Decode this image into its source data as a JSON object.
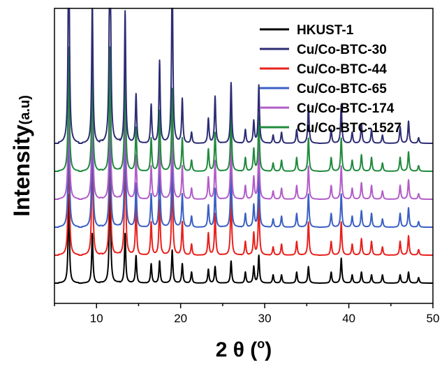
{
  "chart_data": {
    "type": "line",
    "title": "",
    "xlabel": "2 θ (°)",
    "xlabel_parts": {
      "main": "2 θ (",
      "degree": "o",
      "close": ")"
    },
    "ylabel": "Intensity(a.u)",
    "ylabel_parts": {
      "main": "Intensity",
      "unit": "(a.u)"
    },
    "xlim": [
      5,
      50
    ],
    "x_ticks": [
      10,
      20,
      30,
      40,
      50
    ],
    "x_tick_labels": [
      "10",
      "20",
      "30",
      "40",
      "50"
    ],
    "y_ticks_shown": false,
    "grid": false,
    "legend_position": "top-right",
    "stacked_offset": true,
    "peak_positions": [
      6.7,
      9.5,
      11.6,
      13.4,
      14.7,
      16.5,
      17.5,
      19.0,
      20.2,
      21.3,
      23.3,
      24.1,
      26.0,
      27.7,
      28.7,
      29.3,
      31.0,
      32.0,
      33.8,
      35.2,
      37.9,
      39.1,
      40.4,
      41.5,
      42.7,
      44.0,
      46.1,
      47.1,
      48.3
    ],
    "series": [
      {
        "name": "HKUST-1",
        "color": "#000000",
        "offset": 0,
        "scale": 1.0,
        "peaks": [
          0.32,
          0.18,
          0.42,
          0.18,
          0.1,
          0.07,
          0.08,
          0.12,
          0.07,
          0.04,
          0.05,
          0.06,
          0.08,
          0.04,
          0.06,
          0.1,
          0.03,
          0.03,
          0.04,
          0.06,
          0.04,
          0.09,
          0.03,
          0.04,
          0.03,
          0.03,
          0.03,
          0.04,
          0.02
        ]
      },
      {
        "name": "Cu/Co-BTC-44",
        "color": "#e8201c",
        "offset": 1,
        "scale": 1.0,
        "peaks": [
          0.45,
          0.42,
          0.45,
          0.42,
          0.18,
          0.12,
          0.2,
          0.3,
          0.12,
          0.04,
          0.08,
          0.15,
          0.22,
          0.05,
          0.08,
          0.2,
          0.03,
          0.04,
          0.05,
          0.12,
          0.05,
          0.12,
          0.04,
          0.06,
          0.05,
          0.03,
          0.05,
          0.07,
          0.02
        ]
      },
      {
        "name": "Cu/Co-BTC-65",
        "color": "#3a5fc4",
        "offset": 2,
        "scale": 1.0,
        "peaks": [
          0.45,
          0.42,
          0.45,
          0.42,
          0.16,
          0.12,
          0.22,
          0.3,
          0.12,
          0.04,
          0.08,
          0.14,
          0.22,
          0.05,
          0.08,
          0.2,
          0.03,
          0.04,
          0.05,
          0.12,
          0.05,
          0.12,
          0.04,
          0.06,
          0.05,
          0.03,
          0.05,
          0.07,
          0.02
        ]
      },
      {
        "name": "Cu/Co-BTC-174",
        "color": "#b25cc8",
        "offset": 3,
        "scale": 1.0,
        "peaks": [
          0.45,
          0.42,
          0.45,
          0.42,
          0.16,
          0.12,
          0.22,
          0.3,
          0.12,
          0.04,
          0.08,
          0.14,
          0.22,
          0.05,
          0.08,
          0.2,
          0.03,
          0.04,
          0.05,
          0.12,
          0.05,
          0.12,
          0.04,
          0.06,
          0.05,
          0.03,
          0.05,
          0.07,
          0.02
        ]
      },
      {
        "name": "Cu/Co-BTC-1527",
        "color": "#1f8a3c",
        "offset": 4,
        "scale": 1.0,
        "peaks": [
          0.45,
          0.42,
          0.45,
          0.42,
          0.16,
          0.12,
          0.22,
          0.3,
          0.12,
          0.04,
          0.08,
          0.14,
          0.22,
          0.05,
          0.08,
          0.2,
          0.03,
          0.04,
          0.05,
          0.12,
          0.05,
          0.12,
          0.04,
          0.06,
          0.05,
          0.03,
          0.05,
          0.07,
          0.02
        ]
      },
      {
        "name": "Cu/Co-BTC-30",
        "color": "#2c2c74",
        "offset": 5,
        "scale": 1.0,
        "peaks": [
          0.82,
          0.52,
          1.0,
          0.48,
          0.18,
          0.14,
          0.3,
          0.65,
          0.16,
          0.04,
          0.09,
          0.17,
          0.22,
          0.05,
          0.08,
          0.21,
          0.03,
          0.04,
          0.05,
          0.14,
          0.05,
          0.14,
          0.04,
          0.07,
          0.05,
          0.03,
          0.06,
          0.08,
          0.02
        ]
      }
    ],
    "legend_order": [
      "HKUST-1",
      "Cu/Co-BTC-30",
      "Cu/Co-BTC-44",
      "Cu/Co-BTC-65",
      "Cu/Co-BTC-174",
      "Cu/Co-BTC-1527"
    ]
  }
}
